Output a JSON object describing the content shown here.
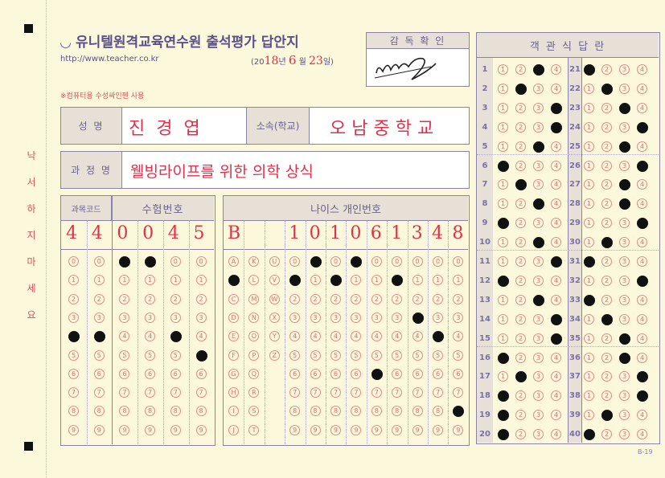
{
  "header": {
    "title": "유니텔원격교육연수원 출석평가 답안지",
    "url": "http://www.teacher.co.kr",
    "date": {
      "open": "(20",
      "year": "18",
      "year_unit": "년",
      "month": "6",
      "month_unit": "월",
      "day": "23",
      "day_unit": "일)"
    },
    "note": "※컴퓨터용 수성싸인펜 사용"
  },
  "supervisor": {
    "label": "감 독 확 인",
    "signature": "signature"
  },
  "info": {
    "name_label": "성    명",
    "name_value": "진  경  엽",
    "school_label": "소속(학교)",
    "school_value": "오 남 중 학 교",
    "course_label": "과 정 명",
    "course_value": "웰빙라이프를 위한 의학 상식"
  },
  "side_warning": [
    "낙",
    "서",
    "하",
    "지",
    "마",
    "세",
    "요"
  ],
  "code": {
    "subject_label": "과목코드",
    "exam_label": "수험번호",
    "written": [
      "4",
      "4",
      "0",
      "0",
      "4",
      "5"
    ],
    "filled": [
      4,
      4,
      0,
      0,
      4,
      5
    ],
    "options": [
      "0",
      "1",
      "2",
      "3",
      "4",
      "5",
      "6",
      "7",
      "8",
      "9"
    ]
  },
  "neis": {
    "label": "나이스 개인번호",
    "written": [
      "B",
      "",
      "",
      "1",
      "0",
      "1",
      "0",
      "6",
      "1",
      "3",
      "4",
      "8"
    ],
    "columns": [
      [
        "A",
        "B",
        "C",
        "D",
        "E",
        "F",
        "G",
        "H",
        "I",
        "J"
      ],
      [
        "K",
        "L",
        "M",
        "N",
        "O",
        "P",
        "Q",
        "R",
        "S",
        "T"
      ],
      [
        "U",
        "V",
        "W",
        "X",
        "Y",
        "Z"
      ],
      [
        "0",
        "1",
        "2",
        "3",
        "4",
        "5",
        "6",
        "7",
        "8",
        "9"
      ],
      [
        "0",
        "1",
        "2",
        "3",
        "4",
        "5",
        "6",
        "7",
        "8",
        "9"
      ],
      [
        "0",
        "1",
        "2",
        "3",
        "4",
        "5",
        "6",
        "7",
        "8",
        "9"
      ],
      [
        "0",
        "1",
        "2",
        "3",
        "4",
        "5",
        "6",
        "7",
        "8",
        "9"
      ],
      [
        "0",
        "1",
        "2",
        "3",
        "4",
        "5",
        "6",
        "7",
        "8",
        "9"
      ],
      [
        "0",
        "1",
        "2",
        "3",
        "4",
        "5",
        "6",
        "7",
        "8",
        "9"
      ],
      [
        "0",
        "1",
        "2",
        "3",
        "4",
        "5",
        "6",
        "7",
        "8",
        "9"
      ],
      [
        "0",
        "1",
        "2",
        "3",
        "4",
        "5",
        "6",
        "7",
        "8",
        "9"
      ],
      [
        "0",
        "1",
        "2",
        "3",
        "4",
        "5",
        "6",
        "7",
        "8",
        "9"
      ]
    ],
    "filled": [
      1,
      null,
      null,
      1,
      0,
      1,
      0,
      6,
      1,
      3,
      4,
      8
    ]
  },
  "answers": {
    "label": "객  관  식  답  란",
    "options": [
      "1",
      "2",
      "3",
      "4"
    ],
    "marked": [
      3,
      2,
      4,
      4,
      3,
      1,
      2,
      3,
      1,
      3,
      4,
      1,
      3,
      4,
      4,
      1,
      2,
      1,
      1,
      1,
      1,
      2,
      3,
      4,
      3,
      4,
      3,
      3,
      4,
      2,
      1,
      4,
      1,
      2,
      3,
      3,
      4,
      4,
      2,
      1
    ]
  },
  "form_code": "B-19",
  "colors": {
    "paper": "#fbf8dc",
    "frame": "#8a82a8",
    "bubble": "#e58a8a",
    "ink": "#e0304a",
    "title": "#5b4f8c"
  }
}
